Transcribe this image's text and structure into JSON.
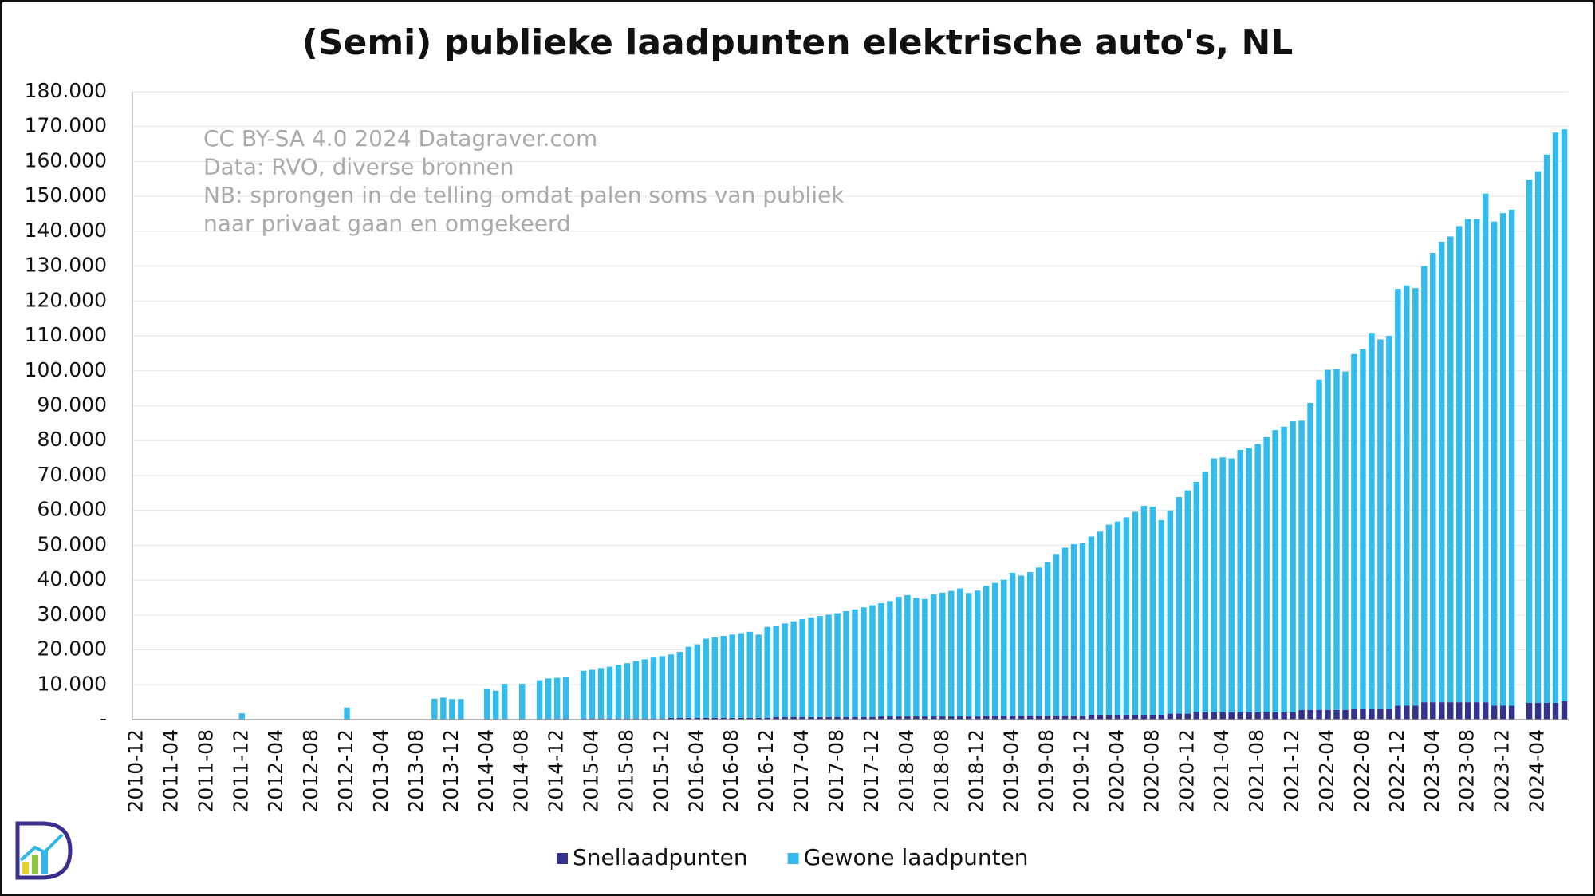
{
  "chart_data": {
    "type": "stacked_bar",
    "title": "(Semi) publieke laadpunten elektrische auto's, NL",
    "annotations": [
      "CC BY-SA 4.0 2024 Datagraver.com",
      "Data: RVO, diverse bronnen",
      "NB: sprongen in de telling omdat palen soms van publiek",
      "naar privaat gaan en omgekeerd"
    ],
    "categories": [
      "2010-12",
      null,
      null,
      null,
      "2011-04",
      null,
      null,
      null,
      "2011-08",
      null,
      null,
      null,
      "2011-12",
      null,
      null,
      null,
      "2012-04",
      null,
      null,
      null,
      "2012-08",
      null,
      null,
      null,
      "2012-12",
      null,
      null,
      null,
      "2013-04",
      null,
      null,
      null,
      "2013-08",
      null,
      null,
      null,
      "2013-12",
      null,
      null,
      null,
      "2014-04",
      null,
      null,
      null,
      "2014-08",
      null,
      null,
      null,
      "2014-12",
      null,
      null,
      null,
      "2015-04",
      null,
      null,
      null,
      "2015-08",
      null,
      null,
      null,
      "2015-12",
      null,
      null,
      null,
      "2016-04",
      null,
      null,
      null,
      "2016-08",
      null,
      null,
      null,
      "2016-12",
      null,
      null,
      null,
      "2017-04",
      null,
      null,
      null,
      "2017-08",
      null,
      null,
      null,
      "2017-12",
      null,
      null,
      null,
      "2018-04",
      null,
      null,
      null,
      "2018-08",
      null,
      null,
      null,
      "2018-12",
      null,
      null,
      null,
      "2019-04",
      null,
      null,
      null,
      "2019-08",
      null,
      null,
      null,
      "2019-12",
      null,
      null,
      null,
      "2020-04",
      null,
      null,
      null,
      "2020-08",
      null,
      null,
      null,
      "2020-12",
      null,
      null,
      null,
      "2021-04",
      null,
      null,
      null,
      "2021-08",
      null,
      null,
      null,
      "2021-12",
      null,
      null,
      null,
      "2022-04",
      null,
      null,
      null,
      "2022-08",
      null,
      null,
      null,
      "2022-12",
      null,
      null,
      null,
      "2023-04",
      null,
      null,
      null,
      "2023-08",
      null,
      null,
      null,
      "2023-12",
      null,
      null,
      null,
      "2024-04",
      null,
      null,
      null
    ],
    "series": [
      {
        "name": "Snellaadpunten",
        "color": "#33338f",
        "values": [
          null,
          null,
          null,
          null,
          null,
          null,
          null,
          null,
          null,
          null,
          null,
          null,
          0,
          null,
          null,
          null,
          null,
          null,
          null,
          null,
          null,
          null,
          null,
          null,
          0,
          null,
          null,
          null,
          null,
          null,
          null,
          null,
          null,
          null,
          100,
          100,
          100,
          200,
          null,
          null,
          200,
          200,
          200,
          null,
          200,
          null,
          200,
          200,
          200,
          300,
          null,
          300,
          300,
          300,
          300,
          300,
          300,
          300,
          300,
          300,
          300,
          500,
          500,
          500,
          500,
          500,
          500,
          500,
          500,
          500,
          500,
          500,
          500,
          700,
          700,
          700,
          700,
          700,
          700,
          700,
          700,
          700,
          700,
          700,
          700,
          900,
          900,
          900,
          900,
          900,
          900,
          900,
          900,
          900,
          900,
          900,
          900,
          1100,
          1100,
          1100,
          1100,
          1100,
          1100,
          1100,
          1100,
          1100,
          1100,
          1100,
          1100,
          1400,
          1400,
          1400,
          1400,
          1400,
          1400,
          1400,
          1400,
          1400,
          1700,
          1700,
          1700,
          2100,
          2100,
          2100,
          2100,
          2100,
          2100,
          2100,
          2100,
          2100,
          2100,
          2100,
          2100,
          2800,
          2800,
          2800,
          2800,
          2800,
          2800,
          3200,
          3200,
          3200,
          3200,
          3200,
          4000,
          4000,
          4000,
          5000,
          5000,
          5000,
          5000,
          5000,
          5000,
          5000,
          5000,
          4000,
          4000,
          4000,
          null,
          4800,
          4800,
          4800,
          4800,
          5300
        ]
      },
      {
        "name": "Gewone laadpunten",
        "color": "#33bbee",
        "values": [
          null,
          null,
          null,
          null,
          null,
          null,
          null,
          null,
          null,
          null,
          null,
          null,
          1800,
          null,
          null,
          null,
          null,
          null,
          null,
          null,
          null,
          null,
          null,
          null,
          3500,
          null,
          null,
          null,
          null,
          null,
          null,
          null,
          null,
          null,
          5900,
          6200,
          5800,
          5700,
          null,
          null,
          8600,
          8100,
          10100,
          null,
          10100,
          null,
          11100,
          11600,
          11800,
          12000,
          null,
          13700,
          14000,
          14500,
          14900,
          15400,
          15900,
          16500,
          17000,
          17500,
          17900,
          18200,
          18900,
          20400,
          21100,
          22700,
          23100,
          23500,
          23900,
          24300,
          24700,
          23900,
          26100,
          26300,
          26900,
          27500,
          28100,
          28600,
          29000,
          29400,
          29800,
          30400,
          30900,
          31500,
          32100,
          32500,
          33100,
          34300,
          34800,
          34000,
          33700,
          35000,
          35500,
          36000,
          36700,
          35400,
          36100,
          37300,
          38100,
          39000,
          41000,
          40200,
          41200,
          42500,
          44100,
          46400,
          48200,
          49200,
          49500,
          51100,
          52500,
          54500,
          55400,
          56600,
          58200,
          59900,
          59700,
          55800,
          58300,
          62100,
          64000,
          66100,
          68900,
          72800,
          73100,
          72800,
          75200,
          75700,
          76900,
          78900,
          80900,
          81900,
          83400,
          82900,
          88000,
          94700,
          97500,
          97700,
          97000,
          101600,
          103000,
          107700,
          105800,
          106800,
          119500,
          120500,
          119700,
          125000,
          128800,
          132000,
          133500,
          136500,
          138500,
          138500,
          145800,
          138800,
          141200,
          142200,
          null,
          150000,
          152400,
          157200,
          163500,
          163900
        ]
      }
    ],
    "ylim": [
      0,
      180000
    ],
    "yticks": [
      {
        "value": 0,
        "label": "-"
      },
      {
        "value": 10000,
        "label": "10.000"
      },
      {
        "value": 20000,
        "label": "20.000"
      },
      {
        "value": 30000,
        "label": "30.000"
      },
      {
        "value": 40000,
        "label": "40.000"
      },
      {
        "value": 50000,
        "label": "50.000"
      },
      {
        "value": 60000,
        "label": "60.000"
      },
      {
        "value": 70000,
        "label": "70.000"
      },
      {
        "value": 80000,
        "label": "80.000"
      },
      {
        "value": 90000,
        "label": "90.000"
      },
      {
        "value": 100000,
        "label": "100.000"
      },
      {
        "value": 110000,
        "label": "110.000"
      },
      {
        "value": 120000,
        "label": "120.000"
      },
      {
        "value": 130000,
        "label": "130.000"
      },
      {
        "value": 140000,
        "label": "140.000"
      },
      {
        "value": 150000,
        "label": "150.000"
      },
      {
        "value": 160000,
        "label": "160.000"
      },
      {
        "value": 170000,
        "label": "170.000"
      },
      {
        "value": 180000,
        "label": "180.000"
      }
    ],
    "grid": true,
    "legend": "bottom"
  }
}
